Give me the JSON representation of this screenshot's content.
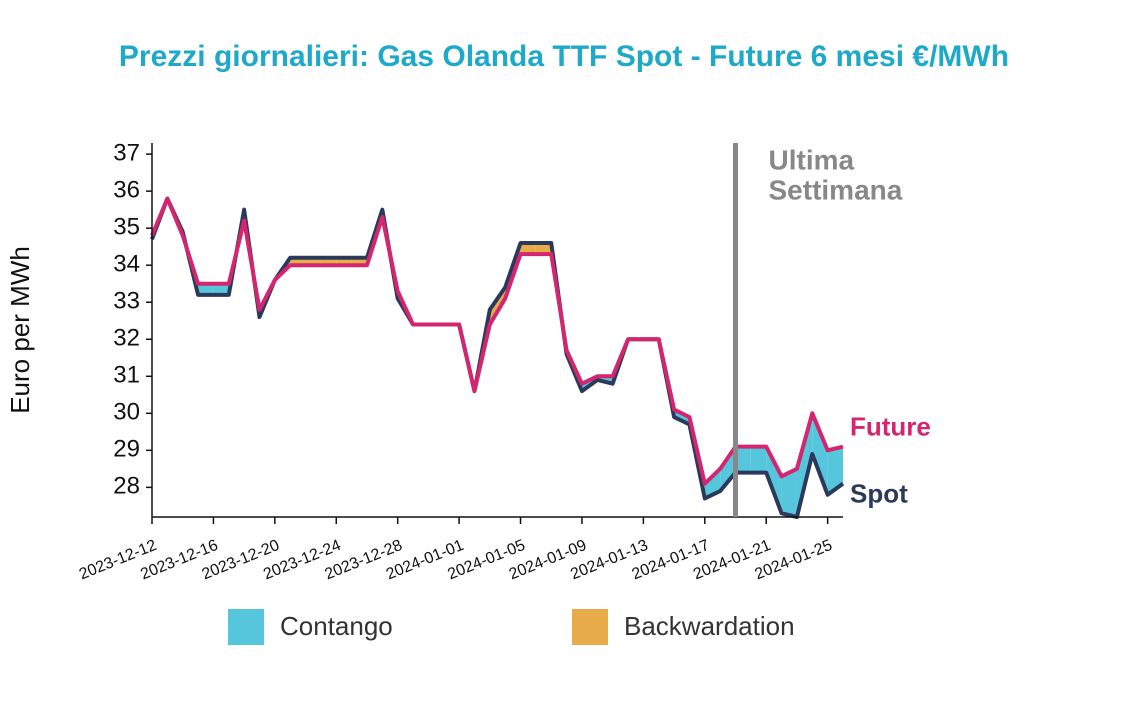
{
  "chart_data": {
    "type": "line",
    "title": "Prezzi giornalieri: Gas Olanda TTF Spot - Future 6 mesi €/MWh",
    "ylabel": "Euro per MWh",
    "x": [
      "2023-12-12",
      "2023-12-13",
      "2023-12-14",
      "2023-12-15",
      "2023-12-16",
      "2023-12-17",
      "2023-12-18",
      "2023-12-19",
      "2023-12-20",
      "2023-12-21",
      "2023-12-22",
      "2023-12-23",
      "2023-12-24",
      "2023-12-25",
      "2023-12-26",
      "2023-12-27",
      "2023-12-28",
      "2023-12-29",
      "2023-12-30",
      "2023-12-31",
      "2024-01-01",
      "2024-01-02",
      "2024-01-03",
      "2024-01-04",
      "2024-01-05",
      "2024-01-06",
      "2024-01-07",
      "2024-01-08",
      "2024-01-09",
      "2024-01-10",
      "2024-01-11",
      "2024-01-12",
      "2024-01-13",
      "2024-01-14",
      "2024-01-15",
      "2024-01-16",
      "2024-01-17",
      "2024-01-18",
      "2024-01-19",
      "2024-01-20",
      "2024-01-21",
      "2024-01-22",
      "2024-01-23",
      "2024-01-24",
      "2024-01-25",
      "2024-01-26"
    ],
    "series": [
      {
        "name": "Spot",
        "color": "#2b3a5c",
        "values": [
          34.7,
          35.8,
          34.9,
          33.2,
          33.2,
          33.2,
          35.5,
          32.6,
          33.6,
          34.2,
          34.2,
          34.2,
          34.2,
          34.2,
          34.2,
          35.5,
          33.1,
          32.4,
          32.4,
          32.4,
          32.4,
          30.6,
          32.8,
          33.4,
          34.6,
          34.6,
          34.6,
          31.6,
          30.6,
          30.9,
          30.8,
          32.0,
          32.0,
          32.0,
          29.9,
          29.7,
          27.7,
          27.9,
          28.4,
          28.4,
          28.4,
          27.3,
          27.2,
          28.9,
          27.8,
          28.1
        ]
      },
      {
        "name": "Future",
        "color": "#d6256f",
        "values": [
          34.8,
          35.8,
          34.8,
          33.5,
          33.5,
          33.5,
          35.2,
          32.8,
          33.6,
          34.0,
          34.0,
          34.0,
          34.0,
          34.0,
          34.0,
          35.3,
          33.3,
          32.4,
          32.4,
          32.4,
          32.4,
          30.6,
          32.4,
          33.1,
          34.3,
          34.3,
          34.3,
          31.7,
          30.8,
          31.0,
          31.0,
          32.0,
          32.0,
          32.0,
          30.1,
          29.9,
          28.1,
          28.5,
          29.1,
          29.1,
          29.1,
          28.3,
          28.5,
          30.0,
          29.0,
          29.1
        ]
      }
    ],
    "fills": [
      {
        "name": "Contango",
        "color": "#55c6dc"
      },
      {
        "name": "Backwardation",
        "color": "#e8ab4a"
      }
    ],
    "annotation": {
      "x": "2024-01-19",
      "lines": [
        "Ultima",
        "Settimana"
      ],
      "color": "#888888"
    },
    "xlim": [
      "2023-12-12",
      "2024-01-26"
    ],
    "xticks": [
      "2023-12-12",
      "2023-12-16",
      "2023-12-20",
      "2023-12-24",
      "2023-12-28",
      "2024-01-01",
      "2024-01-05",
      "2024-01-09",
      "2024-01-13",
      "2024-01-17",
      "2024-01-21",
      "2024-01-25"
    ],
    "ylim": [
      27.2,
      37.3
    ],
    "yticks": [
      28,
      29,
      30,
      31,
      32,
      33,
      34,
      35,
      36,
      37
    ]
  }
}
